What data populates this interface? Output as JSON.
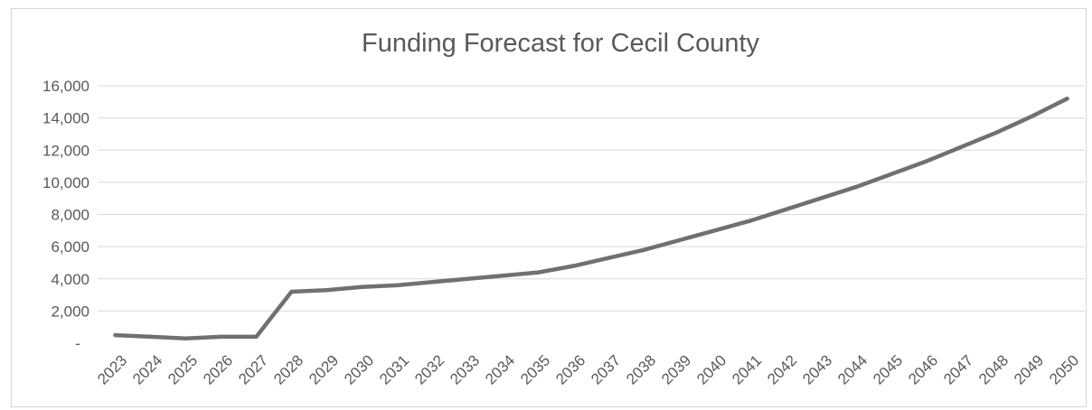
{
  "chart_data": {
    "type": "line",
    "title": "Funding Forecast for Cecil County",
    "xlabel": "",
    "ylabel": "",
    "ylim": [
      0,
      16000
    ],
    "y_ticks": [
      {
        "value": 0,
        "label": "-"
      },
      {
        "value": 2000,
        "label": "2,000"
      },
      {
        "value": 4000,
        "label": "4,000"
      },
      {
        "value": 6000,
        "label": "6,000"
      },
      {
        "value": 8000,
        "label": "8,000"
      },
      {
        "value": 10000,
        "label": "10,000"
      },
      {
        "value": 12000,
        "label": "12,000"
      },
      {
        "value": 14000,
        "label": "14,000"
      },
      {
        "value": 16000,
        "label": "16,000"
      }
    ],
    "grid": true,
    "legend": "none",
    "categories": [
      "2023",
      "2024",
      "2025",
      "2026",
      "2027",
      "2028",
      "2029",
      "2030",
      "2031",
      "2032",
      "2033",
      "2034",
      "2035",
      "2036",
      "2037",
      "2038",
      "2039",
      "2040",
      "2041",
      "2042",
      "2043",
      "2044",
      "2045",
      "2046",
      "2047",
      "2048",
      "2049",
      "2050"
    ],
    "series": [
      {
        "color": "#707070",
        "values": [
          500,
          400,
          300,
          400,
          400,
          3200,
          3300,
          3500,
          3600,
          3800,
          4000,
          4200,
          4400,
          4800,
          5300,
          5800,
          6400,
          7000,
          7600,
          8300,
          9000,
          9700,
          10500,
          11300,
          12200,
          13100,
          14100,
          15200
        ]
      }
    ]
  }
}
